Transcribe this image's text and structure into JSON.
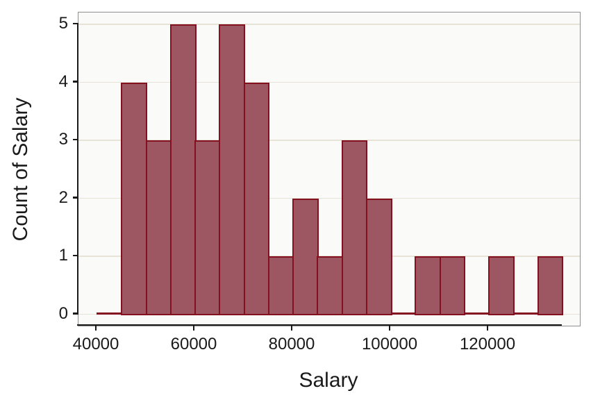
{
  "chart_data": {
    "type": "histogram",
    "title": "",
    "xlabel": "Salary",
    "ylabel": "Count of Salary",
    "bin_start": 40000,
    "bin_width": 5000,
    "bin_edges": [
      40000,
      45000,
      50000,
      55000,
      60000,
      65000,
      70000,
      75000,
      80000,
      85000,
      90000,
      95000,
      100000,
      105000,
      110000,
      115000,
      120000,
      125000,
      130000,
      135000
    ],
    "counts": [
      0,
      4,
      3,
      5,
      3,
      5,
      4,
      1,
      2,
      1,
      3,
      2,
      0,
      1,
      1,
      0,
      1,
      0,
      1
    ],
    "x_ticks": [
      {
        "value": 40000,
        "label": "40000"
      },
      {
        "value": 60000,
        "label": "60000"
      },
      {
        "value": 80000,
        "label": "80000"
      },
      {
        "value": 100000,
        "label": "100000"
      },
      {
        "value": 120000,
        "label": "120000"
      }
    ],
    "y_ticks": [
      {
        "value": 0,
        "label": "0"
      },
      {
        "value": 1,
        "label": "1"
      },
      {
        "value": 2,
        "label": "2"
      },
      {
        "value": 3,
        "label": "3"
      },
      {
        "value": 4,
        "label": "4"
      },
      {
        "value": 5,
        "label": "5"
      }
    ],
    "ylim": [
      0,
      5.2
    ],
    "grid": "horizontal-only",
    "legend": "none",
    "colors": {
      "bar_fill": "#9C5763",
      "bar_border": "#82101E",
      "panel_background": "#FAFAF8",
      "gridline": "#E8E3D7",
      "frame": "#8F8F8F",
      "axis": "#1A1A1A",
      "text": "#1A1A1A"
    }
  }
}
